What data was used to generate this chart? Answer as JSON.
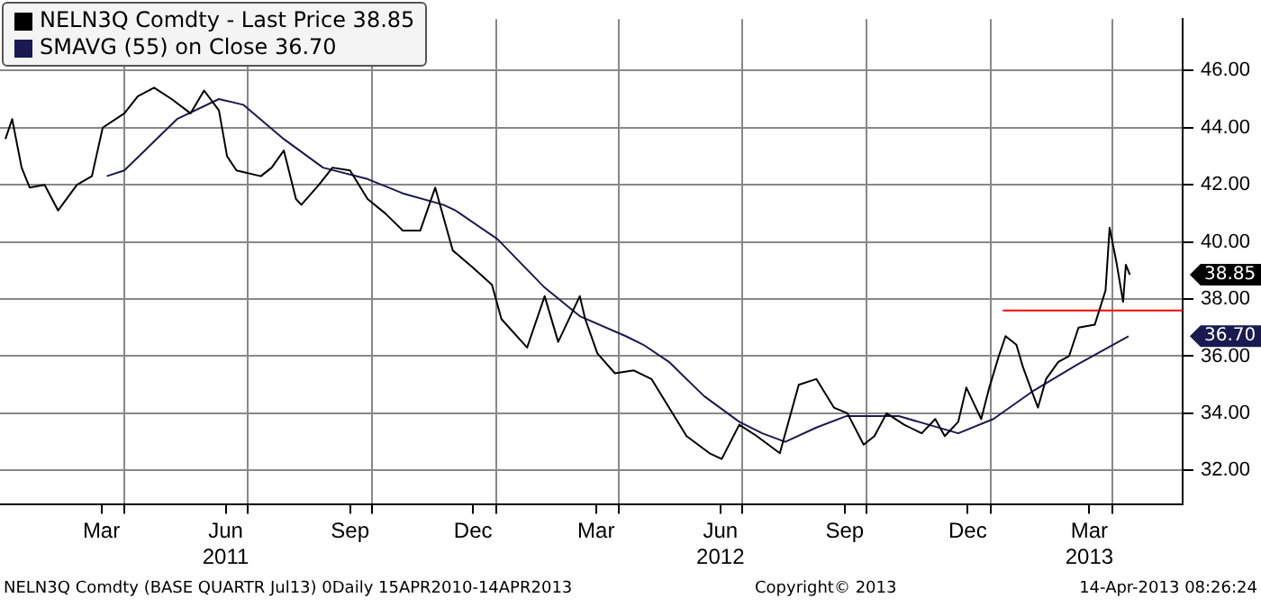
{
  "chart_data": {
    "type": "line",
    "marker": "none",
    "grid": "xy",
    "legend": "top left",
    "xlim": [
      "2010-12-30",
      "2013-05-23"
    ],
    "xticks": [
      {
        "value": "2011-03-15",
        "label": "Mar"
      },
      {
        "value": "2011-04-01",
        "label": null
      },
      {
        "value": "2011-06-15",
        "label": "Jun\n2011"
      },
      {
        "value": "2011-07-01",
        "label": null
      },
      {
        "value": "2011-09-15",
        "label": "Sep"
      },
      {
        "value": "2011-10-01",
        "label": null
      },
      {
        "value": "2011-12-15",
        "label": "Dec"
      },
      {
        "value": "2012-01-01",
        "label": null
      },
      {
        "value": "2012-03-15",
        "label": "Mar"
      },
      {
        "value": "2012-04-01",
        "label": null
      },
      {
        "value": "2012-06-15",
        "label": "Jun\n2012"
      },
      {
        "value": "2012-07-01",
        "label": null
      },
      {
        "value": "2012-09-15",
        "label": "Sep"
      },
      {
        "value": "2012-10-01",
        "label": null
      },
      {
        "value": "2012-12-15",
        "label": "Dec"
      },
      {
        "value": "2013-01-01",
        "label": null
      },
      {
        "value": "2013-03-15",
        "label": "Mar\n2013"
      },
      {
        "value": "2013-04-01",
        "label": null
      }
    ],
    "ylim": [
      30.8,
      47.8
    ],
    "yticks": [
      {
        "value": 32,
        "label": "32.00"
      },
      {
        "value": 34,
        "label": "34.00"
      },
      {
        "value": 36,
        "label": "36.00"
      },
      {
        "value": 38,
        "label": "38.00"
      },
      {
        "value": 40,
        "label": "40.00"
      },
      {
        "value": 42,
        "label": "42.00"
      },
      {
        "value": 44,
        "label": "44.00"
      },
      {
        "value": 46,
        "label": "46.00"
      }
    ],
    "series": [
      {
        "name": "NELN3Q Comdty - Last Price 38.85",
        "color": "#000000",
        "x": [
          "2011-01-03",
          "2011-01-08",
          "2011-01-15",
          "2011-01-21",
          "2011-02-01",
          "2011-02-11",
          "2011-02-25",
          "2011-03-08",
          "2011-03-16",
          "2011-04-01",
          "2011-04-11",
          "2011-04-23",
          "2011-05-06",
          "2011-05-20",
          "2011-05-30",
          "2011-06-10",
          "2011-06-16",
          "2011-06-23",
          "2011-07-11",
          "2011-07-19",
          "2011-07-28",
          "2011-08-06",
          "2011-08-10",
          "2011-08-23",
          "2011-09-02",
          "2011-09-15",
          "2011-09-28",
          "2011-10-11",
          "2011-10-24",
          "2011-11-06",
          "2011-11-17",
          "2011-11-30",
          "2011-12-15",
          "2011-12-29",
          "2012-01-05",
          "2012-01-24",
          "2012-02-06",
          "2012-02-16",
          "2012-03-03",
          "2012-03-07",
          "2012-03-16",
          "2012-03-29",
          "2012-04-12",
          "2012-04-25",
          "2012-05-08",
          "2012-05-21",
          "2012-06-07",
          "2012-06-16",
          "2012-06-29",
          "2012-07-12",
          "2012-07-29",
          "2012-08-12",
          "2012-08-25",
          "2012-09-07",
          "2012-09-17",
          "2012-09-29",
          "2012-10-07",
          "2012-10-16",
          "2012-10-29",
          "2012-11-11",
          "2012-11-21",
          "2012-11-28",
          "2012-12-08",
          "2012-12-14",
          "2012-12-21",
          "2012-12-25",
          "2012-12-31",
          "2013-01-07",
          "2013-01-12",
          "2013-01-20",
          "2013-01-25",
          "2013-02-01",
          "2013-02-05",
          "2013-02-11",
          "2013-02-20",
          "2013-02-28",
          "2013-03-07",
          "2013-03-19",
          "2013-03-27",
          "2013-03-30",
          "2013-04-04",
          "2013-04-09",
          "2013-04-11",
          "2013-04-14"
        ],
        "values": [
          43.6,
          44.3,
          42.6,
          41.9,
          42.0,
          41.1,
          42.0,
          42.3,
          44.0,
          44.5,
          45.1,
          45.4,
          45.0,
          44.5,
          45.3,
          44.6,
          43.0,
          42.5,
          42.3,
          42.6,
          43.2,
          41.5,
          41.3,
          42.0,
          42.6,
          42.5,
          41.5,
          41.0,
          40.4,
          40.4,
          41.9,
          39.7,
          39.1,
          38.5,
          37.3,
          36.3,
          38.1,
          36.5,
          38.1,
          37.3,
          36.1,
          35.4,
          35.5,
          35.2,
          34.2,
          33.2,
          32.6,
          32.4,
          33.6,
          33.2,
          32.6,
          35.0,
          35.2,
          34.2,
          34.0,
          32.9,
          33.2,
          34.0,
          33.6,
          33.3,
          33.8,
          33.2,
          33.7,
          34.9,
          34.2,
          33.8,
          34.9,
          36.0,
          36.7,
          36.4,
          35.6,
          34.7,
          34.2,
          35.2,
          35.8,
          36.0,
          37.0,
          37.1,
          38.3,
          40.5,
          39.3,
          37.9,
          39.2,
          38.85
        ]
      },
      {
        "name": "SMAVG (55) on Close 36.70",
        "color": "#1a1a50",
        "x": [
          "2011-03-19",
          "2011-04-01",
          "2011-05-10",
          "2011-06-10",
          "2011-06-28",
          "2011-07-28",
          "2011-08-26",
          "2011-09-28",
          "2011-10-24",
          "2011-11-23",
          "2011-12-02",
          "2012-01-02",
          "2012-02-06",
          "2012-03-03",
          "2012-04-06",
          "2012-04-19",
          "2012-05-08",
          "2012-06-03",
          "2012-06-29",
          "2012-07-16",
          "2012-08-02",
          "2012-08-25",
          "2012-09-16",
          "2012-10-25",
          "2012-12-08",
          "2013-01-03",
          "2013-02-02",
          "2013-03-06",
          "2013-04-13"
        ],
        "values": [
          42.3,
          42.5,
          44.3,
          45.0,
          44.8,
          43.6,
          42.6,
          42.2,
          41.7,
          41.3,
          41.1,
          40.1,
          38.4,
          37.4,
          36.7,
          36.4,
          35.8,
          34.6,
          33.7,
          33.3,
          33.0,
          33.5,
          33.9,
          33.9,
          33.3,
          33.8,
          34.8,
          35.7,
          36.7
        ]
      },
      {
        "color": "#ff0000",
        "x": [
          "2013-01-10",
          "2013-05-23"
        ],
        "values": [
          37.6,
          37.6
        ]
      }
    ],
    "annotations": [
      "38.85",
      "36.70",
      "NELN3Q Comdty (BASE QUARTR Jul13) 0Daily 15APR2010-14APR2013",
      "Copyright© 2013",
      "14-Apr-2013 08:26:24"
    ]
  }
}
